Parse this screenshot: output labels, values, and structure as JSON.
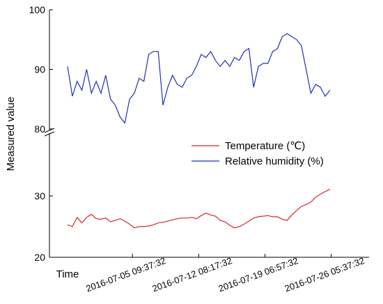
{
  "chart_data": {
    "type": "line",
    "y_label": "Measured value",
    "x_label": "Time",
    "x": [
      -1.4,
      -0.9,
      -0.4,
      0.1,
      0.6,
      1.1,
      1.6,
      2.1,
      2.6,
      3.1,
      3.6,
      4.1,
      4.6,
      5.1,
      5.6,
      6.1,
      6.6,
      7.1,
      7.6,
      8.1,
      8.6,
      9.1,
      9.6,
      10.1,
      10.6,
      11.1,
      11.6,
      12.1,
      12.6,
      13.1,
      13.6,
      14.1,
      14.6,
      15.1,
      15.6,
      16.1,
      16.6,
      17.1,
      17.6,
      18.1,
      18.6,
      19.1,
      19.6,
      20.1,
      20.6,
      21.1,
      21.6,
      22.1,
      22.6,
      23.1,
      23.6,
      24.1,
      24.6,
      25.1,
      25.6,
      26.1
    ],
    "xlim": [
      -3.3,
      30.2
    ],
    "xticks": [
      {
        "value": 5.4,
        "label": "2016-07-05 09:37:32"
      },
      {
        "value": 12.35,
        "label": "2016-07-12 08:17:32"
      },
      {
        "value": 19.29,
        "label": "2016-07-19 06:57:32"
      },
      {
        "value": 26.23,
        "label": "2016-07-26 05:37:32"
      }
    ],
    "y_segments": [
      {
        "ylim": [
          20,
          40
        ],
        "yticks": [
          20,
          30
        ]
      },
      {
        "ylim": [
          80,
          100
        ],
        "yticks": [
          80,
          90,
          100
        ]
      }
    ],
    "series": [
      {
        "name": "Temperature (℃)",
        "color": "#d62728",
        "segment": 0,
        "values": [
          25.3,
          25.0,
          26.5,
          25.6,
          26.5,
          27.0,
          26.3,
          26.2,
          26.4,
          25.8,
          26.0,
          26.3,
          25.9,
          25.4,
          24.8,
          25.0,
          25.0,
          25.1,
          25.3,
          25.6,
          25.7,
          25.9,
          26.1,
          26.3,
          26.4,
          26.4,
          26.5,
          26.3,
          26.8,
          27.2,
          26.9,
          26.7,
          26.0,
          25.8,
          25.2,
          24.8,
          25.0,
          25.4,
          25.9,
          26.4,
          26.6,
          26.7,
          26.8,
          26.6,
          26.6,
          26.2,
          26.0,
          26.9,
          27.6,
          28.3,
          28.6,
          29.0,
          29.8,
          30.3,
          30.7,
          31.1
        ]
      },
      {
        "name": "Relative humidity (%)",
        "color": "#1f2fb4",
        "segment": 1,
        "values": [
          90.5,
          85.5,
          88,
          86.5,
          90,
          86,
          88,
          86,
          89,
          85,
          84,
          82,
          81,
          85,
          86,
          88.5,
          88,
          92.5,
          93,
          93,
          84,
          87,
          89,
          87.5,
          87,
          88.5,
          89,
          90.5,
          92.5,
          92,
          93,
          91.5,
          90.5,
          91.5,
          90.5,
          92,
          91.5,
          93,
          93.5,
          87,
          90.5,
          91,
          91,
          93,
          93.5,
          95.5,
          96,
          95.5,
          95,
          94,
          90,
          86,
          87.5,
          87,
          85.5,
          86.5
        ]
      }
    ]
  }
}
